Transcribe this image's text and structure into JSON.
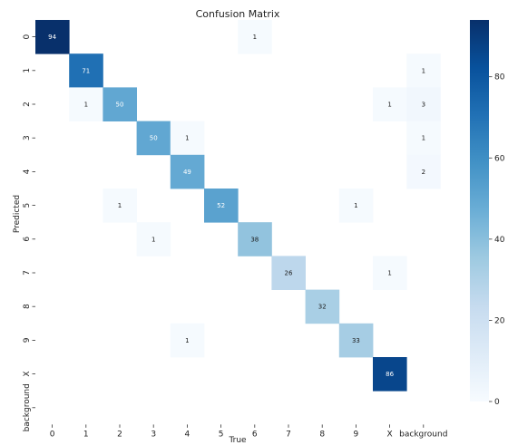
{
  "chart_data": {
    "type": "heatmap",
    "title": "Confusion Matrix",
    "xlabel": "True",
    "ylabel": "Predicted",
    "x_labels": [
      "0",
      "1",
      "2",
      "3",
      "4",
      "5",
      "6",
      "7",
      "8",
      "9",
      "X",
      "background"
    ],
    "y_labels": [
      "0",
      "1",
      "2",
      "3",
      "4",
      "5",
      "6",
      "7",
      "8",
      "9",
      "X",
      "background"
    ],
    "colormap": "Blues",
    "vmin": 0,
    "vmax": 94,
    "colorbar_ticks": [
      0,
      20,
      40,
      60,
      80
    ],
    "matrix": [
      [
        94,
        null,
        null,
        null,
        null,
        null,
        1,
        null,
        null,
        null,
        null,
        null
      ],
      [
        null,
        71,
        null,
        null,
        null,
        null,
        null,
        null,
        null,
        null,
        null,
        1
      ],
      [
        null,
        1,
        50,
        null,
        null,
        null,
        null,
        null,
        null,
        null,
        1,
        3
      ],
      [
        null,
        null,
        null,
        50,
        1,
        null,
        null,
        null,
        null,
        null,
        null,
        1
      ],
      [
        null,
        null,
        null,
        null,
        49,
        null,
        null,
        null,
        null,
        null,
        null,
        2
      ],
      [
        null,
        null,
        1,
        null,
        null,
        52,
        null,
        null,
        null,
        1,
        null,
        null
      ],
      [
        null,
        null,
        null,
        1,
        null,
        null,
        38,
        null,
        null,
        null,
        null,
        null
      ],
      [
        null,
        null,
        null,
        null,
        null,
        null,
        null,
        26,
        null,
        null,
        1,
        null
      ],
      [
        null,
        null,
        null,
        null,
        null,
        null,
        null,
        null,
        32,
        null,
        null,
        null
      ],
      [
        null,
        null,
        null,
        null,
        1,
        null,
        null,
        null,
        null,
        33,
        null,
        null
      ],
      [
        null,
        null,
        null,
        null,
        null,
        null,
        null,
        null,
        null,
        null,
        86,
        null
      ],
      [
        null,
        null,
        null,
        null,
        null,
        null,
        null,
        null,
        null,
        null,
        null,
        null
      ]
    ]
  }
}
